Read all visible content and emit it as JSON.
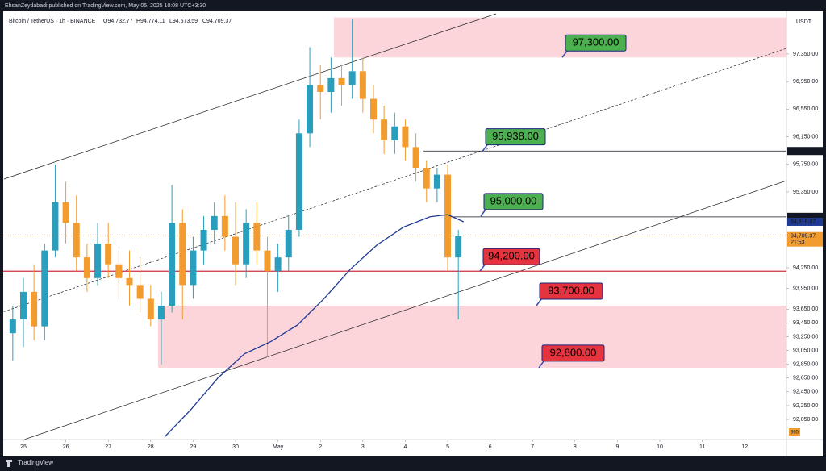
{
  "header": {
    "published": "EhsanZeydabadi published on TradingView.com, May 05, 2025 10:08 UTC+3:30",
    "footer": "TradingView"
  },
  "chart_data": {
    "type": "candlestick",
    "symbol": "Bitcoin / TetherUS · 1h · BINANCE",
    "legend_ohlc": [
      "O94,732.77",
      "H94,774.11",
      "L94,573.59",
      "C94,709.37"
    ],
    "currency": "USDT",
    "up_color": "#2a9fbd",
    "down_color": "#f29b2e",
    "x": [
      -6,
      0,
      6,
      12,
      18,
      24,
      30,
      36,
      42,
      48,
      54,
      60,
      66,
      72,
      78,
      84,
      90,
      96,
      102,
      108,
      114,
      120,
      126,
      132,
      138,
      144,
      150,
      156,
      162,
      168,
      174,
      180,
      186,
      192,
      198,
      204,
      210,
      216,
      222,
      228,
      234,
      240,
      246
    ],
    "open": [
      93300,
      93500,
      93900,
      93400,
      94500,
      95200,
      94900,
      94400,
      94100,
      94600,
      94300,
      94100,
      94000,
      93800,
      93500,
      93700,
      94900,
      94000,
      94500,
      94800,
      95000,
      94700,
      94300,
      94900,
      94500,
      94200,
      94400,
      94800,
      96200,
      96900,
      96800,
      97000,
      96900,
      97100,
      96700,
      96400,
      96100,
      96300,
      96000,
      95700,
      95400,
      95600,
      94400
    ],
    "high": [
      93700,
      94100,
      94300,
      94600,
      95750,
      95500,
      95300,
      94600,
      94900,
      94900,
      94500,
      94500,
      94400,
      94000,
      93900,
      95450,
      95100,
      94700,
      95000,
      95200,
      95300,
      95200,
      95100,
      95200,
      94700,
      94600,
      95000,
      96400,
      97450,
      97200,
      97300,
      97200,
      97850,
      97300,
      96900,
      96600,
      96500,
      96400,
      96200,
      95800,
      95700,
      95750,
      94800
    ],
    "low": [
      92900,
      93100,
      93200,
      93200,
      94400,
      94600,
      94200,
      93900,
      94000,
      94100,
      93800,
      93700,
      93600,
      93400,
      92850,
      93600,
      93500,
      93800,
      94300,
      94600,
      94500,
      94000,
      94100,
      94300,
      92950,
      93900,
      94200,
      94700,
      96000,
      96400,
      96500,
      96600,
      96700,
      96500,
      96200,
      95900,
      95900,
      95800,
      95500,
      95200,
      95200,
      94200,
      93500
    ],
    "close": [
      93500,
      93900,
      93400,
      94500,
      95200,
      94900,
      94400,
      94100,
      94600,
      94300,
      94100,
      94000,
      93800,
      93500,
      93700,
      94900,
      94000,
      94500,
      94800,
      95000,
      94700,
      94300,
      94900,
      94500,
      94200,
      94400,
      94800,
      96200,
      96900,
      96800,
      97000,
      96900,
      97100,
      96700,
      96400,
      96100,
      96300,
      96000,
      95700,
      95400,
      95600,
      94400,
      94709.37
    ],
    "indicator": {
      "color": "#1f3a93",
      "x": [
        80,
        95,
        110,
        125,
        140,
        155,
        170,
        185,
        200,
        215,
        230,
        240,
        249
      ],
      "values": [
        91800,
        92200,
        92650,
        93000,
        93180,
        93420,
        93800,
        94230,
        94580,
        94840,
        94990,
        95020,
        94916.87
      ]
    },
    "xlim": [
      -11.4,
      431.6
    ],
    "xticks": [
      {
        "value": 0,
        "label": "25"
      },
      {
        "value": 24,
        "label": "26"
      },
      {
        "value": 48,
        "label": "27"
      },
      {
        "value": 72,
        "label": "28"
      },
      {
        "value": 96,
        "label": "29"
      },
      {
        "value": 120,
        "label": "30"
      },
      {
        "value": 144,
        "label": "May"
      },
      {
        "value": 168,
        "label": "2"
      },
      {
        "value": 192,
        "label": "3"
      },
      {
        "value": 216,
        "label": "4"
      },
      {
        "value": 240,
        "label": "5"
      },
      {
        "value": 264,
        "label": "6"
      },
      {
        "value": 288,
        "label": "7"
      },
      {
        "value": 312,
        "label": "8"
      },
      {
        "value": 336,
        "label": "9"
      },
      {
        "value": 360,
        "label": "10"
      },
      {
        "value": 384,
        "label": "11"
      },
      {
        "value": 408,
        "label": "12"
      }
    ],
    "ylim": [
      91758,
      97923
    ],
    "yticks": [
      {
        "value": 97350,
        "label": "97,350.00"
      },
      {
        "value": 96950,
        "label": "96,950.00"
      },
      {
        "value": 96550,
        "label": "96,550.00"
      },
      {
        "value": 96150,
        "label": "96,150.00"
      },
      {
        "value": 95750,
        "label": "95,750.00"
      },
      {
        "value": 95350,
        "label": "95,350.00"
      },
      {
        "value": 94250,
        "label": "94,250.00"
      },
      {
        "value": 93950,
        "label": "93,950.00"
      },
      {
        "value": 93650,
        "label": "93,650.00"
      },
      {
        "value": 93450,
        "label": "93,450.00"
      },
      {
        "value": 93250,
        "label": "93,250.00"
      },
      {
        "value": 93050,
        "label": "93,050.00"
      },
      {
        "value": 92850,
        "label": "92,850.00"
      },
      {
        "value": 92650,
        "label": "92,650.00"
      },
      {
        "value": 92450,
        "label": "92,450.00"
      },
      {
        "value": 92250,
        "label": "92,250.00"
      },
      {
        "value": 92050,
        "label": "92,050.00"
      }
    ],
    "price_tags": [
      {
        "value": 95943.39,
        "label": "95,943.39",
        "color": "#131722"
      },
      {
        "value": 94988.61,
        "label": "94,988.61",
        "color": "#131722"
      },
      {
        "value": 94916.87,
        "label": "94,916.87",
        "color": "#1f3a93"
      },
      {
        "value": 94709.37,
        "label": "94,709.37",
        "color": "#f29b2e"
      }
    ],
    "countdown": "21:53",
    "badge": "365",
    "zones": [
      {
        "from": 97300,
        "to": 97880,
        "color": "#fcd5db"
      },
      {
        "from": 92800,
        "to": 93700,
        "color": "#fcd5db"
      }
    ],
    "support_line": {
      "value": 94200,
      "color": "#d32f3f"
    },
    "annotations": [
      {
        "label": "97,300.00",
        "value": 97300,
        "color": "#4caf50"
      },
      {
        "label": "95,938.00",
        "value": 95938,
        "color": "#4caf50"
      },
      {
        "label": "95,000.00",
        "value": 95000,
        "color": "#4caf50"
      },
      {
        "label": "94,200.00",
        "value": 94200,
        "color": "#e5343f"
      },
      {
        "label": "93,700.00",
        "value": 93700,
        "color": "#e5343f"
      },
      {
        "label": "92,800.00",
        "value": 92800,
        "color": "#e5343f"
      }
    ]
  }
}
